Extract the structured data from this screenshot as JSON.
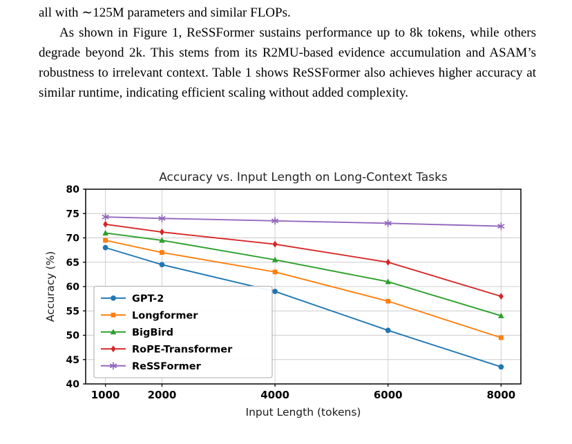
{
  "page": {
    "paragraph1": "all with ∼125M parameters and similar FLOPs.",
    "paragraph2": "As shown in Figure 1, ReSSFormer sustains performance up to 8k tokens, while others degrade beyond 2k. This stems from its R2MU-based evidence accumulation and ASAM’s robustness to irrelevant context. Table 1 shows ReSSFormer also achieves higher accuracy at similar runtime, indicating efficient scaling without added complexity."
  },
  "chart_data": {
    "type": "line",
    "title": "Accuracy vs. Input Length on Long-Context Tasks",
    "xlabel": "Input Length (tokens)",
    "ylabel": "Accuracy (%)",
    "x": [
      1000,
      2000,
      4000,
      6000,
      8000
    ],
    "xticks": [
      1000,
      2000,
      4000,
      6000,
      8000
    ],
    "yticks": [
      40,
      45,
      50,
      55,
      60,
      65,
      70,
      75,
      80
    ],
    "xlim": [
      650,
      8350
    ],
    "ylim": [
      40,
      80
    ],
    "grid": true,
    "legend_position": "lower-left",
    "series": [
      {
        "name": "GPT-2",
        "color": "#1f77b4",
        "marker": "circle",
        "values": [
          68.0,
          64.5,
          59.0,
          51.0,
          43.5
        ]
      },
      {
        "name": "Longformer",
        "color": "#ff7f0e",
        "marker": "square",
        "values": [
          69.5,
          67.0,
          63.0,
          57.0,
          49.5
        ]
      },
      {
        "name": "BigBird",
        "color": "#2ca02c",
        "marker": "triangle",
        "values": [
          71.0,
          69.5,
          65.5,
          61.0,
          54.0
        ]
      },
      {
        "name": "RoPE-Transformer",
        "color": "#d62728",
        "marker": "diamond",
        "values": [
          72.8,
          71.2,
          68.7,
          65.0,
          58.0
        ]
      },
      {
        "name": "ReSSFormer",
        "color": "#9467bd",
        "marker": "star",
        "values": [
          74.3,
          74.0,
          73.5,
          73.0,
          72.4
        ]
      }
    ]
  }
}
